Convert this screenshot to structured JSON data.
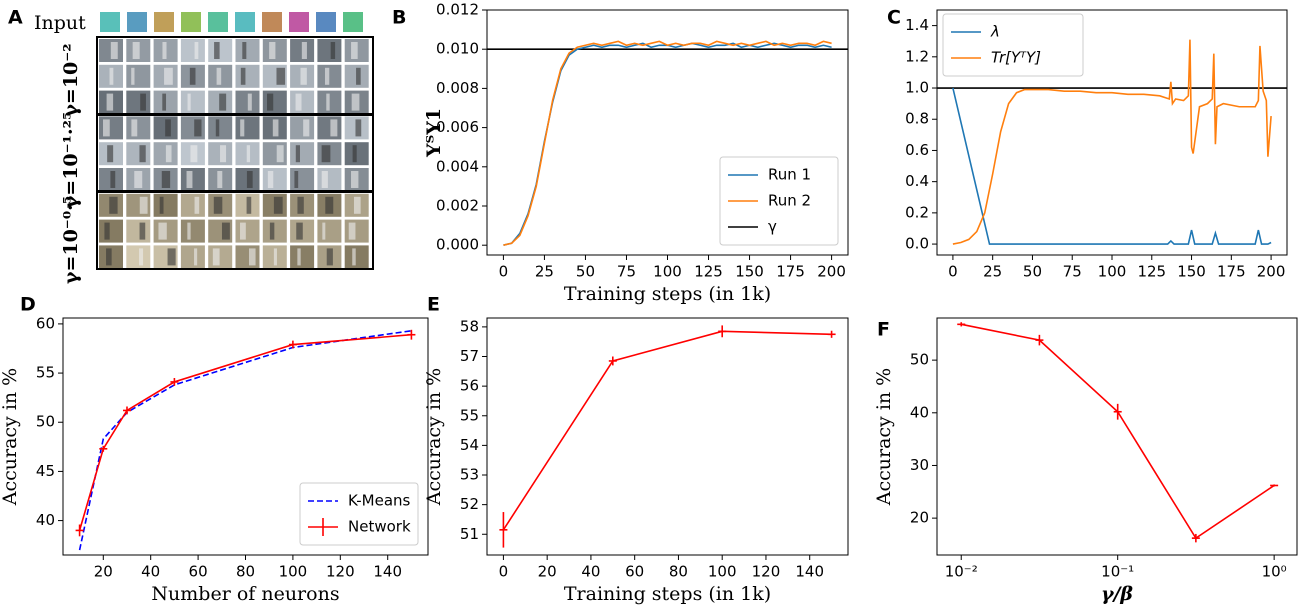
{
  "panel_a": {
    "panel_label": "A",
    "input_label": "Input",
    "row_labels": [
      "γ=10⁻²",
      "γ=10⁻¹·²⁵",
      "γ=10⁻⁰·⁵"
    ]
  },
  "chart_data": [
    {
      "type": "line",
      "panel_label": "B",
      "xlabel": "Training steps (in 1k)",
      "ylabel": "YᵀY1",
      "x": [
        0,
        5,
        10,
        15,
        20,
        25,
        30,
        35,
        40,
        45,
        50,
        55,
        60,
        65,
        70,
        75,
        80,
        85,
        90,
        95,
        100,
        105,
        110,
        115,
        120,
        125,
        130,
        135,
        140,
        145,
        150,
        155,
        160,
        165,
        170,
        175,
        180,
        185,
        190,
        195,
        200
      ],
      "series": [
        {
          "name": "Run 1",
          "color": "#1f77b4",
          "values": [
            0,
            0.0001,
            0.0006,
            0.0016,
            0.0031,
            0.0053,
            0.0073,
            0.0089,
            0.0097,
            0.01,
            0.0101,
            0.0102,
            0.0101,
            0.0102,
            0.0102,
            0.0101,
            0.0102,
            0.0103,
            0.0101,
            0.0102,
            0.0102,
            0.0101,
            0.0102,
            0.0103,
            0.0102,
            0.0101,
            0.0102,
            0.0102,
            0.0103,
            0.0101,
            0.0102,
            0.0101,
            0.0102,
            0.0103,
            0.0102,
            0.0101,
            0.0102,
            0.0102,
            0.0101,
            0.0102,
            0.0101
          ]
        },
        {
          "name": "Run 2",
          "color": "#ff7f0e",
          "values": [
            0,
            0.0001,
            0.0005,
            0.0015,
            0.003,
            0.0052,
            0.0074,
            0.009,
            0.0098,
            0.0101,
            0.0102,
            0.0103,
            0.0102,
            0.0103,
            0.0104,
            0.0102,
            0.0103,
            0.0102,
            0.0103,
            0.0104,
            0.0102,
            0.0103,
            0.0102,
            0.0103,
            0.0103,
            0.0102,
            0.0104,
            0.0103,
            0.0102,
            0.0103,
            0.0102,
            0.0103,
            0.0104,
            0.0102,
            0.0103,
            0.0102,
            0.0103,
            0.0103,
            0.0102,
            0.0104,
            0.0103
          ]
        }
      ],
      "reference_line": {
        "name": "γ",
        "value": 0.01,
        "color": "#000000"
      },
      "xlim": [
        -10,
        210
      ],
      "xticks": [
        0,
        25,
        50,
        75,
        100,
        125,
        150,
        175,
        200
      ],
      "ylim": [
        -0.0005,
        0.012
      ],
      "yticks": [
        {
          "value": 0,
          "label": "0.000"
        },
        {
          "value": 0.002,
          "label": "0.002"
        },
        {
          "value": 0.004,
          "label": "0.004"
        },
        {
          "value": 0.006,
          "label": "0.006"
        },
        {
          "value": 0.008,
          "label": "0.008"
        },
        {
          "value": 0.01,
          "label": "0.010"
        },
        {
          "value": 0.012,
          "label": "0.012"
        }
      ],
      "legend": "lower right"
    },
    {
      "type": "line",
      "panel_label": "C",
      "series": [
        {
          "name": "λ",
          "color": "#1f77b4",
          "x": [
            0,
            23,
            135,
            137,
            139,
            148,
            150,
            152,
            163,
            165,
            167,
            190,
            192,
            194,
            198,
            200
          ],
          "values": [
            1,
            0,
            0,
            0.02,
            0,
            0,
            0.09,
            0,
            0,
            0.07,
            0,
            0,
            0.09,
            0,
            0,
            0.01
          ]
        },
        {
          "name": "Tr[YᵀY]",
          "color": "#ff7f0e",
          "x": [
            0,
            5,
            10,
            15,
            20,
            25,
            30,
            35,
            40,
            45,
            50,
            60,
            70,
            80,
            90,
            100,
            110,
            120,
            130,
            136,
            137,
            138,
            140,
            145,
            148,
            149,
            150,
            151,
            155,
            160,
            163,
            164,
            165,
            166,
            170,
            180,
            190,
            192,
            193,
            195,
            197,
            198,
            200
          ],
          "values": [
            0,
            0.01,
            0.03,
            0.08,
            0.2,
            0.45,
            0.72,
            0.9,
            0.97,
            0.99,
            0.99,
            0.99,
            0.98,
            0.98,
            0.97,
            0.97,
            0.96,
            0.96,
            0.95,
            0.93,
            1.04,
            0.9,
            0.93,
            0.92,
            0.95,
            1.31,
            0.62,
            0.58,
            0.88,
            0.9,
            0.93,
            1.22,
            0.64,
            0.88,
            0.9,
            0.88,
            0.88,
            0.92,
            1.27,
            0.98,
            0.92,
            0.56,
            0.82
          ]
        }
      ],
      "reference_line": {
        "value": 1,
        "color": "#000000"
      },
      "xlim": [
        -10,
        210
      ],
      "xticks": [
        0,
        25,
        50,
        75,
        100,
        125,
        150,
        175,
        200
      ],
      "ylim": [
        -0.07,
        1.5
      ],
      "yticks": [
        {
          "value": 0,
          "label": "0.0"
        },
        {
          "value": 0.2,
          "label": "0.2"
        },
        {
          "value": 0.4,
          "label": "0.4"
        },
        {
          "value": 0.6,
          "label": "0.6"
        },
        {
          "value": 0.8,
          "label": "0.8"
        },
        {
          "value": 1,
          "label": "1.0"
        },
        {
          "value": 1.2,
          "label": "1.2"
        },
        {
          "value": 1.4,
          "label": "1.4"
        }
      ],
      "legend": "upper left"
    },
    {
      "type": "line",
      "panel_label": "D",
      "xlabel": "Number of neurons",
      "ylabel": "Accuracy in %",
      "x": [
        10,
        20,
        30,
        50,
        100,
        150
      ],
      "series": [
        {
          "name": "K-Means",
          "color": "#0000ff",
          "linestyle": "dashed",
          "values": [
            37,
            48.3,
            51,
            53.8,
            57.6,
            59.3
          ]
        },
        {
          "name": "Network",
          "color": "#ff0000",
          "values": [
            39,
            47.3,
            51.2,
            54.1,
            57.9,
            58.9
          ],
          "errors": [
            0.6,
            0.3,
            0.4,
            0.4,
            0.4,
            0.5
          ]
        }
      ],
      "xlim": [
        3,
        157
      ],
      "xticks": [
        20,
        40,
        60,
        80,
        100,
        120,
        140
      ],
      "ylim": [
        36.5,
        60.6
      ],
      "yticks": [
        40,
        45,
        50,
        55,
        60
      ],
      "legend": "lower right"
    },
    {
      "type": "line",
      "panel_label": "E",
      "xlabel": "Training steps (in 1k)",
      "ylabel": "Accuracy in %",
      "x": [
        0,
        50,
        100,
        150
      ],
      "series": [
        {
          "color": "#ff0000",
          "values": [
            51.15,
            56.85,
            57.85,
            57.75
          ],
          "errors": [
            0.6,
            0.15,
            0.2,
            0.12
          ]
        }
      ],
      "xlim": [
        -7.5,
        157.5
      ],
      "xticks": [
        0,
        20,
        40,
        60,
        80,
        100,
        120,
        140
      ],
      "ylim": [
        50.3,
        58.3
      ],
      "yticks": [
        51,
        52,
        53,
        54,
        55,
        56,
        57,
        58
      ]
    },
    {
      "type": "line",
      "panel_label": "F",
      "xlabel": "γ/β",
      "ylabel": "Accuracy in %",
      "x": [
        0.01,
        0.0316,
        0.1,
        0.316,
        1
      ],
      "xscale": "log",
      "series": [
        {
          "color": "#ff0000",
          "values": [
            56.8,
            53.8,
            40.2,
            16.2,
            26.2
          ],
          "errors": [
            0.4,
            1,
            1.5,
            0.8,
            0.2
          ]
        }
      ],
      "xlim": [
        0.007,
        1.4
      ],
      "xticks": [
        {
          "value": 0.01,
          "label": "10⁻²"
        },
        {
          "value": 0.1,
          "label": "10⁻¹"
        },
        {
          "value": 1,
          "label": "10⁰"
        }
      ],
      "ylim": [
        13,
        58
      ],
      "yticks": [
        20,
        30,
        40,
        50
      ]
    }
  ]
}
